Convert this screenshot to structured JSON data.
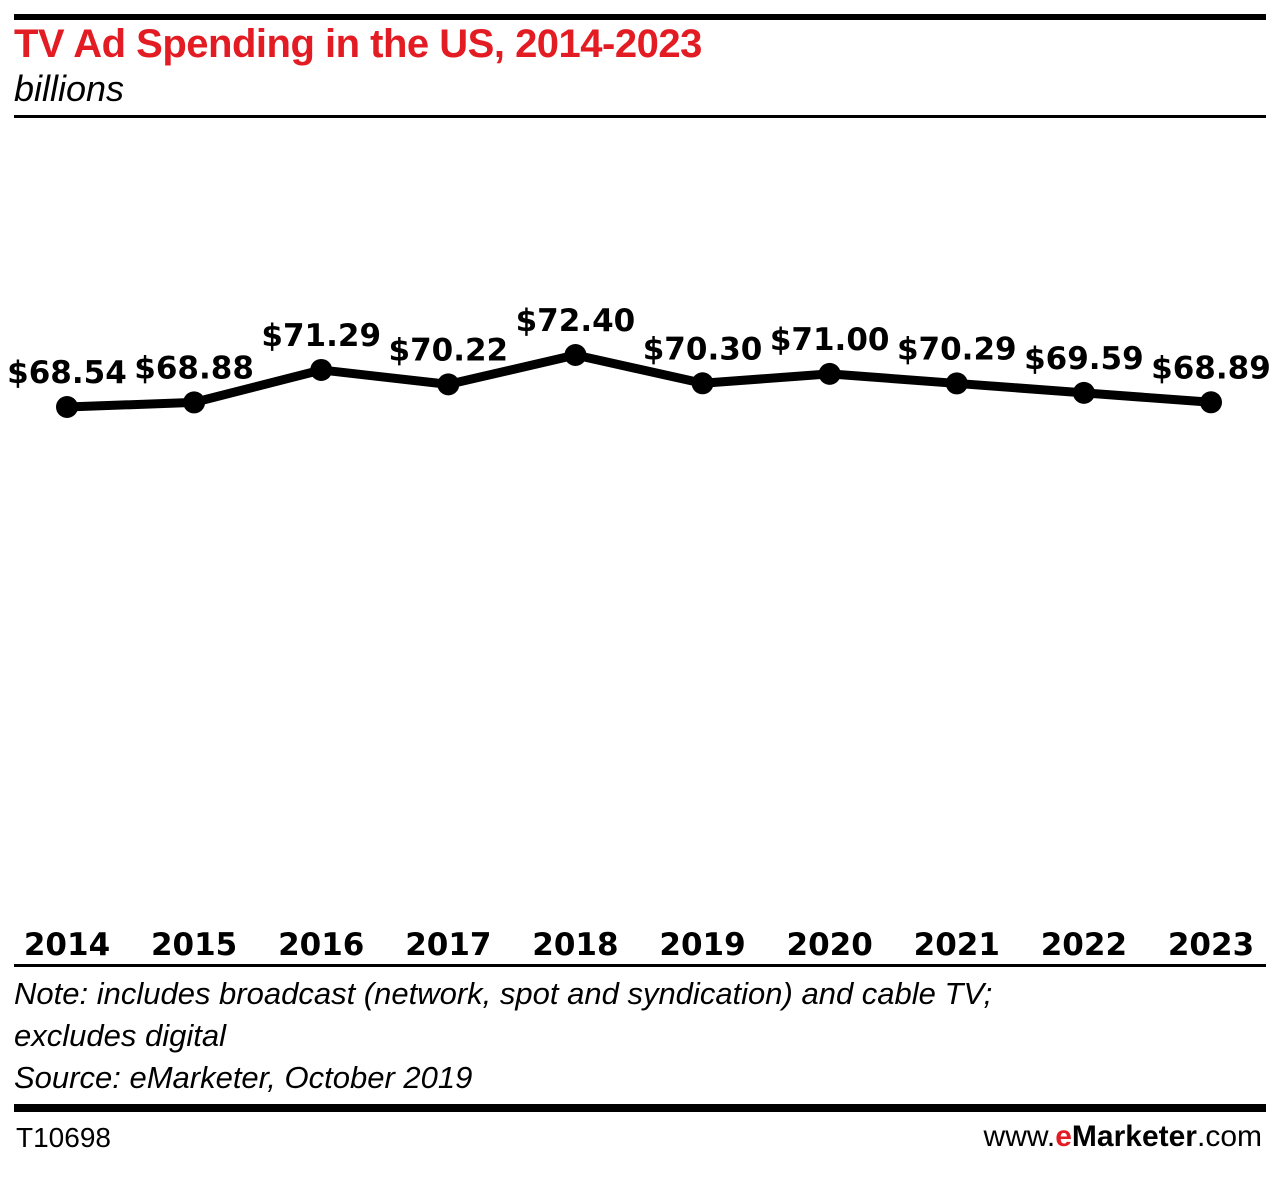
{
  "chart_data": {
    "type": "line",
    "title": "TV Ad Spending in the US, 2014-2023",
    "subtitle": "billions",
    "categories": [
      "2014",
      "2015",
      "2016",
      "2017",
      "2018",
      "2019",
      "2020",
      "2021",
      "2022",
      "2023"
    ],
    "values": [
      68.54,
      68.88,
      71.29,
      70.22,
      72.4,
      70.3,
      71.0,
      70.29,
      69.59,
      68.89
    ],
    "data_labels": [
      "$68.54",
      "$68.88",
      "$71.29",
      "$70.22",
      "$72.40",
      "$70.30",
      "$71.00",
      "$70.29",
      "$69.59",
      "$68.89"
    ],
    "xlabel": "",
    "ylabel": "",
    "grid": false,
    "line_color": "#000000"
  },
  "notes": {
    "note_line1": "Note: includes broadcast (network, spot and syndication) and cable TV;",
    "note_line2": "excludes digital",
    "source": "Source: eMarketer, October 2019"
  },
  "footer": {
    "code": "T10698",
    "site_prefix": "www.",
    "site_e": "e",
    "site_brand": "Marketer",
    "site_suffix": ".com"
  },
  "colors": {
    "title": "#e31b23",
    "accent": "#e31b23"
  }
}
